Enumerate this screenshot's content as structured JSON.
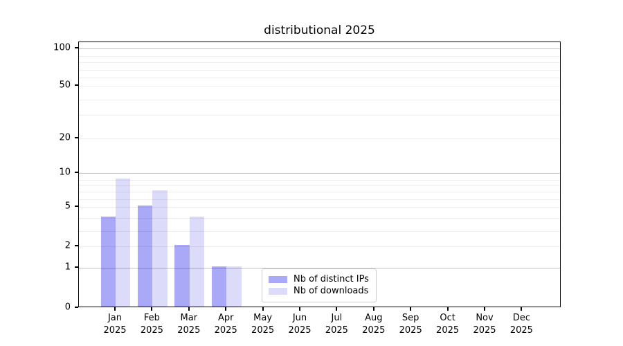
{
  "title": "distributional 2025",
  "chart_data": {
    "type": "bar",
    "title": "distributional 2025",
    "categories": [
      "Jan",
      "Feb",
      "Mar",
      "Apr",
      "May",
      "Jun",
      "Jul",
      "Aug",
      "Sep",
      "Oct",
      "Nov",
      "Dec"
    ],
    "category_year_label": "2025",
    "series": [
      {
        "name": "Nb of distinct IPs",
        "color": "#a9a9f8",
        "values": [
          4,
          5,
          2,
          1,
          0,
          0,
          0,
          0,
          0,
          0,
          0,
          0
        ]
      },
      {
        "name": "Nb of downloads",
        "color": "#dcdcfa",
        "values": [
          9,
          7,
          4,
          1,
          0,
          0,
          0,
          0,
          0,
          0,
          0,
          0
        ]
      }
    ],
    "y_axis": {
      "scale": "symlog",
      "range": [
        0,
        100
      ],
      "tick_labels": [
        100,
        50,
        20,
        10,
        5,
        2,
        1,
        0
      ],
      "major_gridlines": [
        1,
        10,
        100
      ],
      "minor_gridlines": [
        2,
        3,
        4,
        5,
        6,
        7,
        8,
        9,
        20,
        30,
        40,
        50,
        60,
        70,
        80,
        90
      ]
    },
    "x_axis": {
      "tick_year": "2025"
    },
    "legend": {
      "position": "lower center",
      "entries": [
        "Nb of distinct IPs",
        "Nb of downloads"
      ]
    },
    "grid": true
  }
}
